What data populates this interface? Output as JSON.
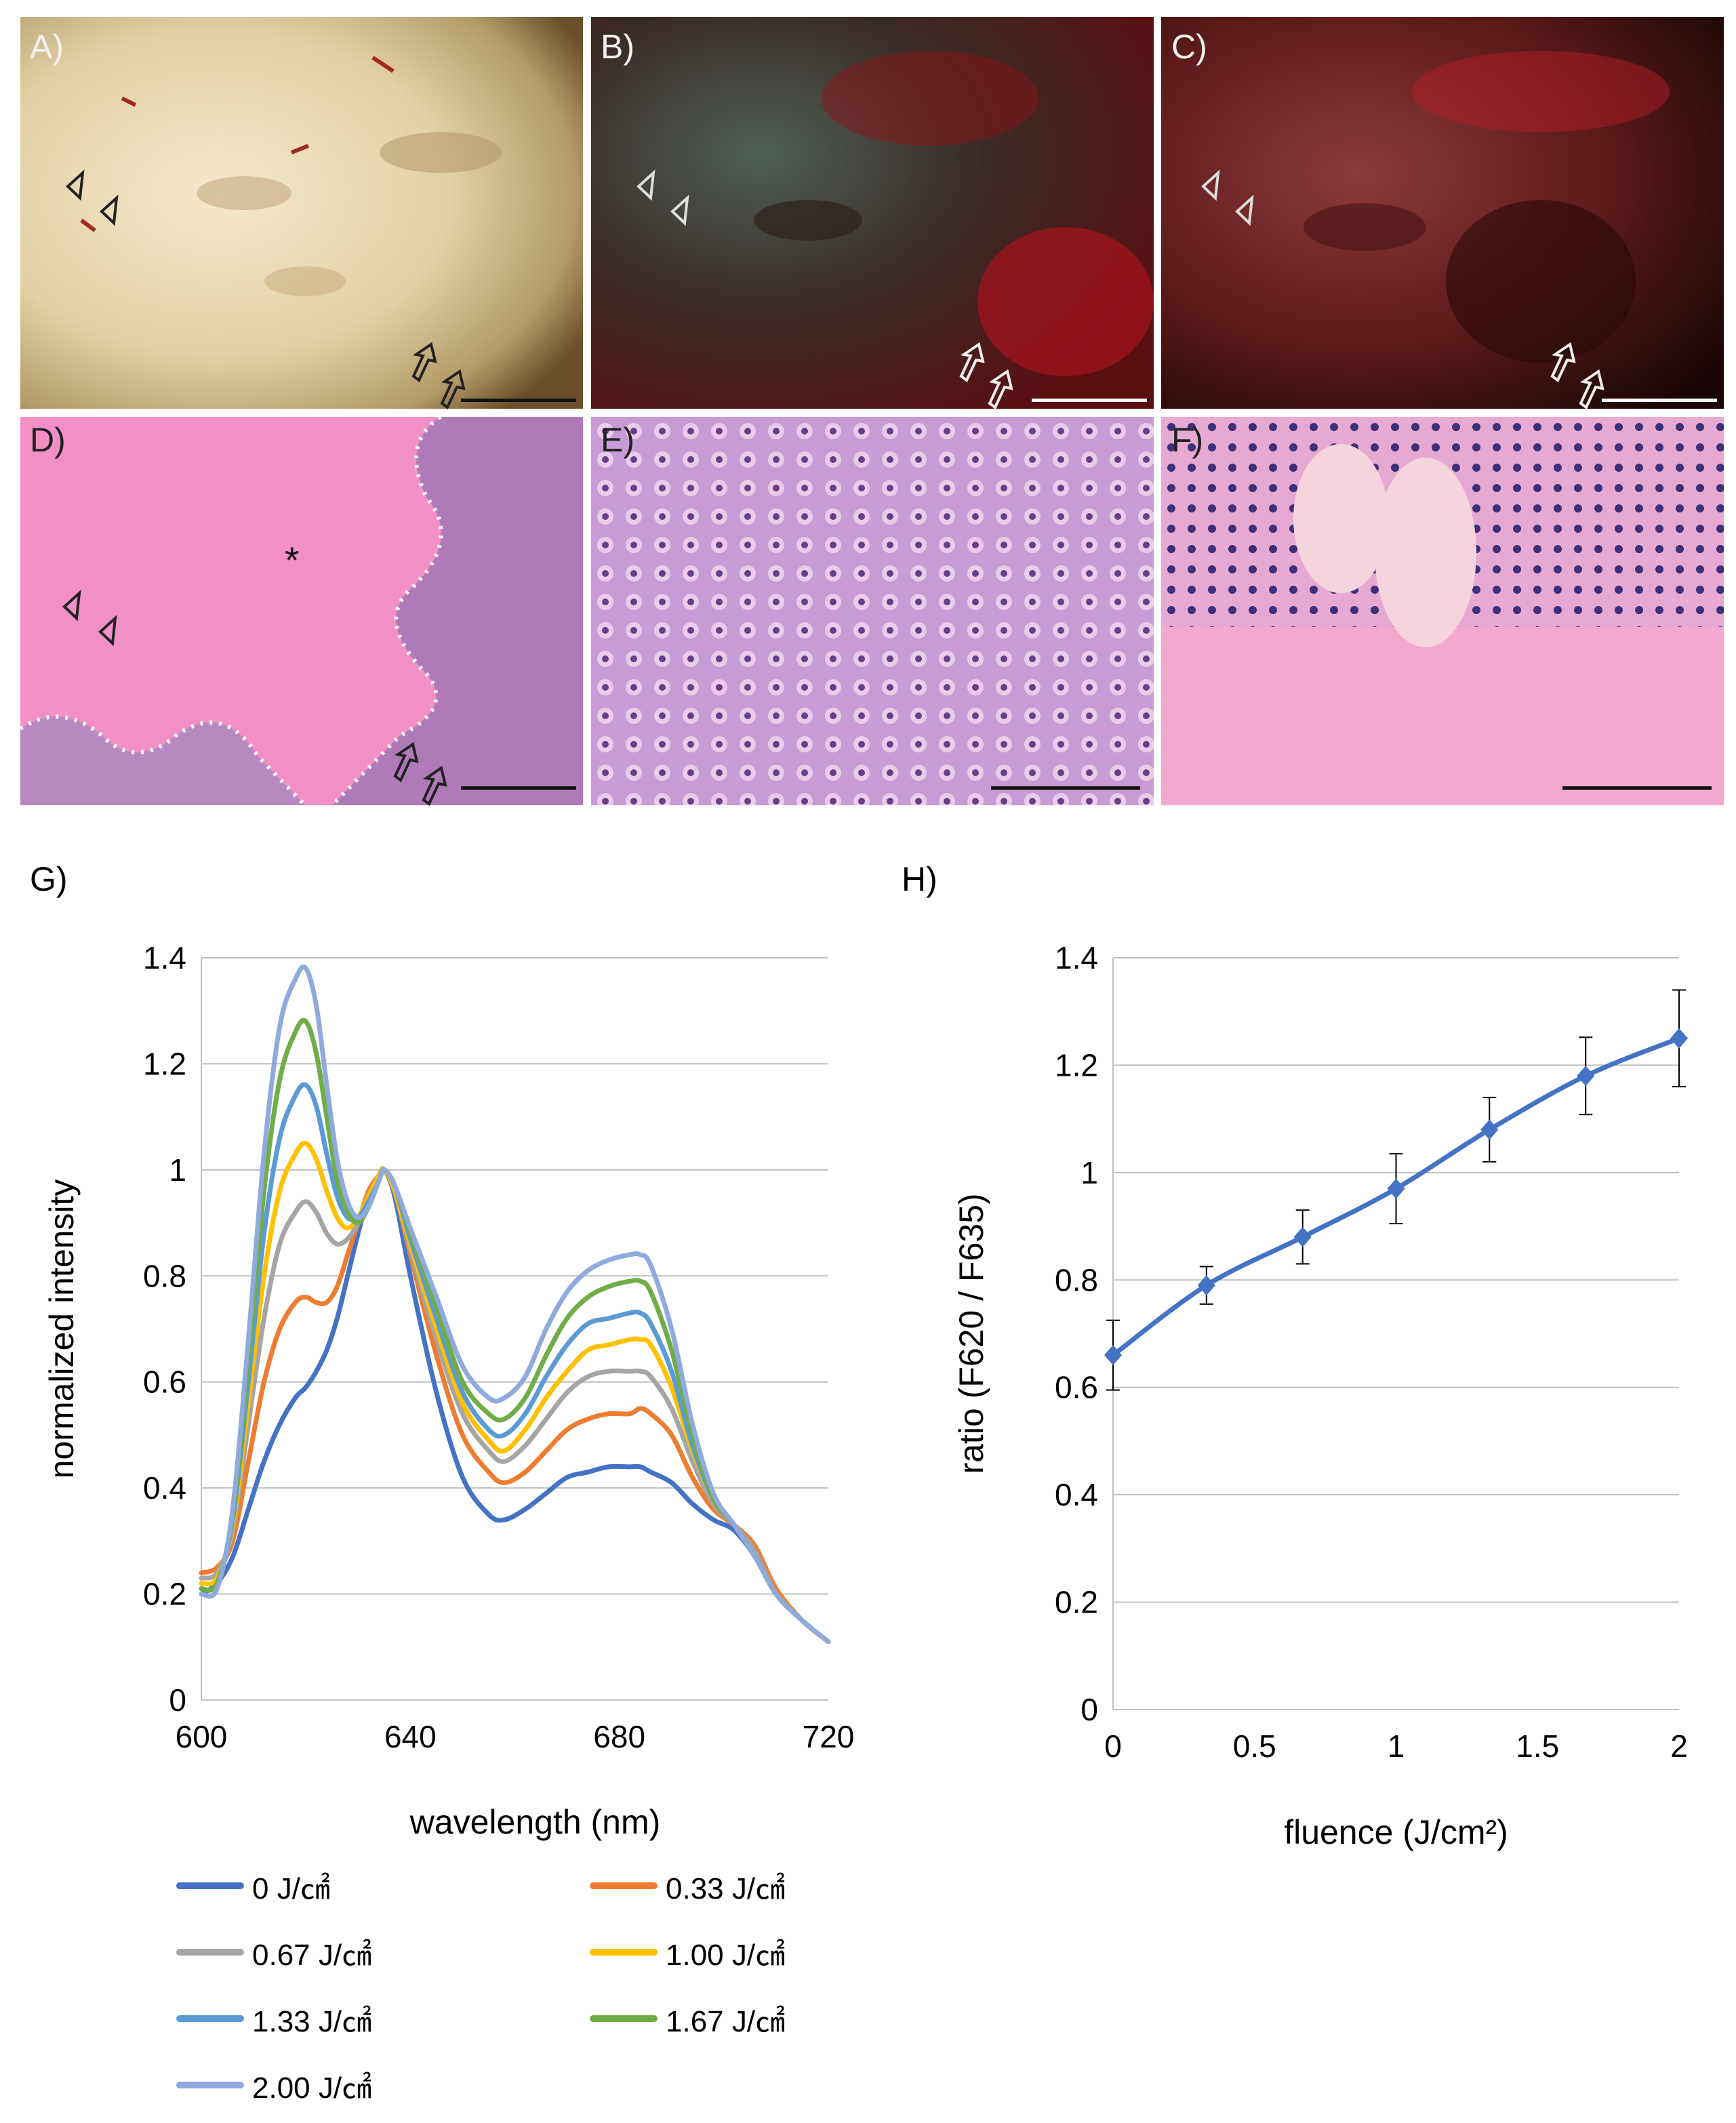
{
  "panels": {
    "A": "A)",
    "B": "B)",
    "C": "C)",
    "D": "D)",
    "E": "E)",
    "F": "F)",
    "G": "G)",
    "H": "H)"
  },
  "colors": {
    "s0": "#4472c4",
    "s033": "#ed7d31",
    "s067": "#a5a5a5",
    "s100": "#ffc000",
    "s133": "#5b9bd5",
    "s167": "#70ad47",
    "s200": "#8faadc",
    "ratio": "#4472c4"
  },
  "chart_data": [
    {
      "type": "line",
      "panel": "G)",
      "xlabel": "wavelength  (nm)",
      "ylabel": "normalized intensity",
      "xlim": [
        600,
        720
      ],
      "ylim": [
        0,
        1.4
      ],
      "xticks": [
        "600",
        "640",
        "680",
        "720"
      ],
      "yticks": [
        "0",
        "0.2",
        "0.4",
        "0.6",
        "0.8",
        "1",
        "1.2",
        "1.4"
      ],
      "grid": "horizontal",
      "legend_position": "bottom",
      "x": [
        600,
        603,
        606,
        609,
        612,
        615,
        618,
        620,
        622,
        624,
        626,
        628,
        630,
        632,
        634,
        635,
        637,
        640,
        645,
        650,
        655,
        658,
        662,
        666,
        670,
        674,
        678,
        682,
        684,
        686,
        690,
        694,
        698,
        702,
        706,
        710,
        715,
        720
      ],
      "series": [
        {
          "name": "0 J/㎠",
          "values": [
            0.2,
            0.22,
            0.27,
            0.36,
            0.45,
            0.52,
            0.57,
            0.59,
            0.62,
            0.66,
            0.72,
            0.8,
            0.88,
            0.95,
            0.99,
            1.0,
            0.95,
            0.8,
            0.58,
            0.42,
            0.35,
            0.34,
            0.36,
            0.39,
            0.42,
            0.43,
            0.44,
            0.44,
            0.44,
            0.43,
            0.41,
            0.37,
            0.34,
            0.32,
            0.27,
            0.2,
            0.15,
            0.11
          ]
        },
        {
          "name": "0.33 J/㎠",
          "values": [
            0.24,
            0.25,
            0.3,
            0.45,
            0.6,
            0.7,
            0.75,
            0.76,
            0.75,
            0.75,
            0.78,
            0.84,
            0.9,
            0.96,
            0.99,
            1.0,
            0.96,
            0.84,
            0.65,
            0.5,
            0.43,
            0.41,
            0.43,
            0.47,
            0.51,
            0.53,
            0.54,
            0.54,
            0.55,
            0.54,
            0.5,
            0.42,
            0.36,
            0.33,
            0.29,
            0.21,
            0.15,
            0.11
          ]
        },
        {
          "name": "0.67 J/㎠",
          "values": [
            0.23,
            0.24,
            0.32,
            0.52,
            0.72,
            0.86,
            0.92,
            0.94,
            0.92,
            0.88,
            0.86,
            0.87,
            0.9,
            0.95,
            0.99,
            1.0,
            0.96,
            0.85,
            0.68,
            0.54,
            0.47,
            0.45,
            0.48,
            0.53,
            0.58,
            0.61,
            0.62,
            0.62,
            0.62,
            0.61,
            0.55,
            0.45,
            0.37,
            0.33,
            0.28,
            0.2,
            0.15,
            0.11
          ]
        },
        {
          "name": "1.00 J/㎠",
          "values": [
            0.22,
            0.23,
            0.33,
            0.56,
            0.8,
            0.96,
            1.03,
            1.05,
            1.02,
            0.96,
            0.91,
            0.89,
            0.91,
            0.95,
            0.99,
            1.0,
            0.96,
            0.86,
            0.7,
            0.56,
            0.49,
            0.47,
            0.51,
            0.57,
            0.62,
            0.66,
            0.67,
            0.68,
            0.68,
            0.67,
            0.59,
            0.47,
            0.38,
            0.33,
            0.27,
            0.2,
            0.15,
            0.11
          ]
        },
        {
          "name": "1.33 J/㎠",
          "values": [
            0.21,
            0.22,
            0.34,
            0.6,
            0.88,
            1.06,
            1.14,
            1.16,
            1.12,
            1.03,
            0.95,
            0.91,
            0.91,
            0.94,
            0.98,
            1.0,
            0.97,
            0.87,
            0.72,
            0.58,
            0.51,
            0.5,
            0.54,
            0.61,
            0.67,
            0.71,
            0.72,
            0.73,
            0.73,
            0.71,
            0.62,
            0.48,
            0.38,
            0.33,
            0.27,
            0.2,
            0.15,
            0.11
          ]
        },
        {
          "name": "1.67 J/㎠",
          "values": [
            0.21,
            0.22,
            0.35,
            0.64,
            0.96,
            1.17,
            1.26,
            1.28,
            1.22,
            1.1,
            0.98,
            0.92,
            0.9,
            0.93,
            0.98,
            1.0,
            0.97,
            0.88,
            0.74,
            0.6,
            0.54,
            0.53,
            0.57,
            0.65,
            0.72,
            0.76,
            0.78,
            0.79,
            0.79,
            0.77,
            0.66,
            0.5,
            0.38,
            0.33,
            0.27,
            0.2,
            0.15,
            0.11
          ]
        },
        {
          "name": "2.00 J/㎠",
          "values": [
            0.2,
            0.21,
            0.36,
            0.68,
            1.03,
            1.27,
            1.36,
            1.38,
            1.31,
            1.16,
            1.02,
            0.94,
            0.91,
            0.93,
            0.98,
            1.0,
            0.97,
            0.89,
            0.76,
            0.63,
            0.57,
            0.57,
            0.61,
            0.7,
            0.77,
            0.81,
            0.83,
            0.84,
            0.84,
            0.82,
            0.7,
            0.52,
            0.39,
            0.33,
            0.27,
            0.2,
            0.15,
            0.11
          ]
        }
      ]
    },
    {
      "type": "line",
      "panel": "H)",
      "xlabel": "fluence (J/cm²)",
      "ylabel": "ratio (F620 / F635)",
      "xlim": [
        0,
        2
      ],
      "ylim": [
        0,
        1.4
      ],
      "xticks": [
        "0",
        "0.5",
        "1",
        "1.5",
        "2"
      ],
      "yticks": [
        "0",
        "0.2",
        "0.4",
        "0.6",
        "0.8",
        "1",
        "1.2",
        "1.4"
      ],
      "grid": "horizontal",
      "x": [
        0,
        0.33,
        0.67,
        1.0,
        1.33,
        1.67,
        2.0
      ],
      "values": [
        0.66,
        0.79,
        0.88,
        0.97,
        1.08,
        1.18,
        1.25
      ],
      "errors": [
        0.065,
        0.035,
        0.05,
        0.065,
        0.06,
        0.072,
        0.09
      ]
    }
  ]
}
